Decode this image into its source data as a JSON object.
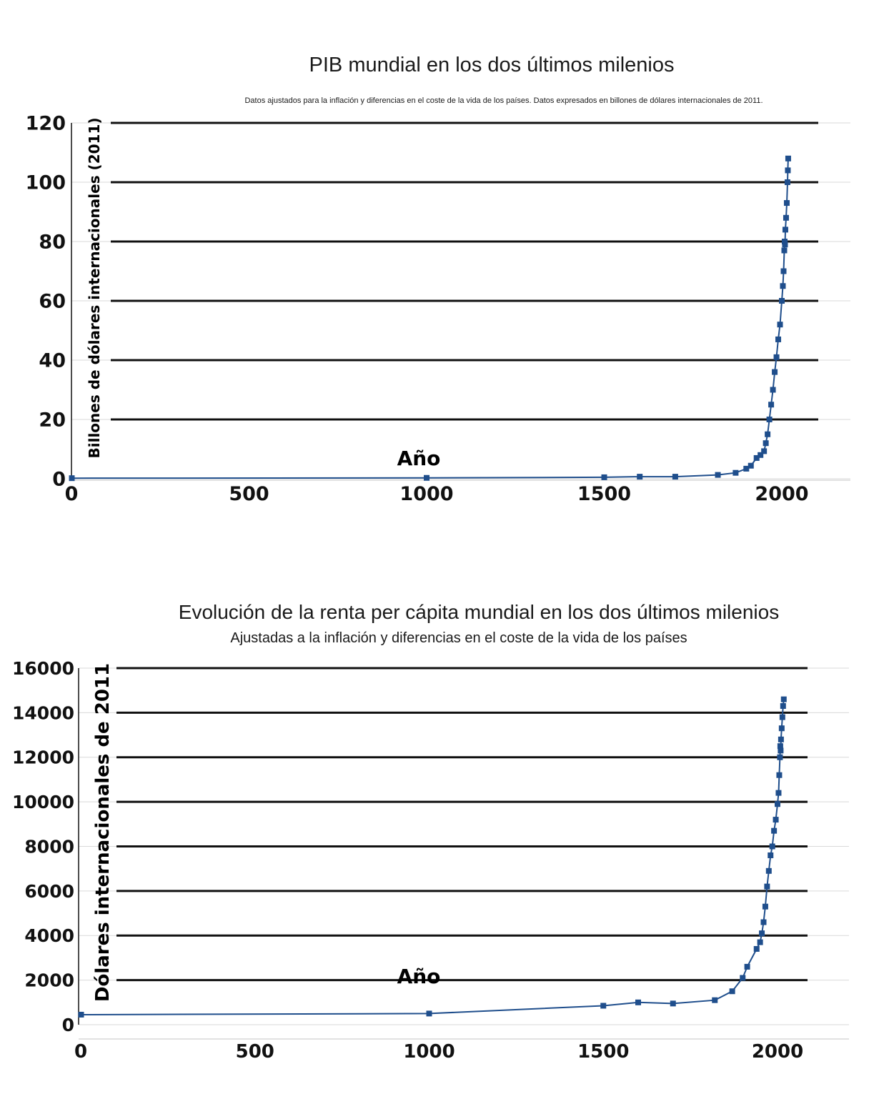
{
  "colors": {
    "series": "#1f4e8c",
    "grid_major": "#111111",
    "grid_light": "#d9d9d9",
    "text": "#111111"
  },
  "chart_data": [
    {
      "type": "line",
      "title": "PIB mundial en los dos últimos milenios",
      "subtitle": "Datos ajustados para la inflación y diferencias en el coste de la vida de los países. Datos expresados en billones de dólares internacionales de 2011.",
      "xlabel": "Año",
      "ylabel": "Billones de dólares internacionales (2011)",
      "xlim": [
        0,
        2100
      ],
      "ylim": [
        0,
        120
      ],
      "x_ticks": [
        0,
        500,
        1000,
        1500,
        2000
      ],
      "y_ticks": [
        0,
        20,
        40,
        60,
        80,
        100,
        120
      ],
      "grid": true,
      "markers": "square",
      "series": [
        {
          "name": "",
          "points": [
            [
              1,
              0.2
            ],
            [
              1000,
              0.3
            ],
            [
              1500,
              0.5
            ],
            [
              1600,
              0.7
            ],
            [
              1700,
              0.7
            ],
            [
              1820,
              1.3
            ],
            [
              1870,
              2.0
            ],
            [
              1900,
              3.4
            ],
            [
              1913,
              4.4
            ],
            [
              1929,
              7.0
            ],
            [
              1940,
              8.0
            ],
            [
              1950,
              9.3
            ],
            [
              1955,
              12.0
            ],
            [
              1960,
              15.0
            ],
            [
              1965,
              20.0
            ],
            [
              1970,
              25.0
            ],
            [
              1975,
              30.0
            ],
            [
              1980,
              36.0
            ],
            [
              1985,
              41.0
            ],
            [
              1990,
              47.0
            ],
            [
              1995,
              52.0
            ],
            [
              2000,
              60.0
            ],
            [
              2003,
              65.0
            ],
            [
              2005,
              70.0
            ],
            [
              2007,
              77.0
            ],
            [
              2008,
              80.0
            ],
            [
              2009,
              79.0
            ],
            [
              2010,
              84.0
            ],
            [
              2012,
              88.0
            ],
            [
              2014,
              93.0
            ],
            [
              2016,
              100.0
            ],
            [
              2017,
              104.0
            ],
            [
              2018,
              108.0
            ]
          ]
        }
      ]
    },
    {
      "type": "line",
      "title": "Evolución de la renta per cápita mundial en los dos últimos milenios",
      "subtitle": "Ajustadas a la inflación y diferencias en el coste de la vida de los países",
      "xlabel": "Año",
      "ylabel": "Dólares internacionales de 2011",
      "xlim": [
        0,
        2200
      ],
      "ylim": [
        0,
        16000
      ],
      "x_ticks": [
        0,
        500,
        1000,
        1500,
        2000
      ],
      "y_ticks": [
        0,
        2000,
        4000,
        6000,
        8000,
        10000,
        12000,
        14000,
        16000
      ],
      "grid": true,
      "markers": "square",
      "series": [
        {
          "name": "",
          "points": [
            [
              1,
              450
            ],
            [
              1000,
              500
            ],
            [
              1500,
              850
            ],
            [
              1600,
              1000
            ],
            [
              1700,
              950
            ],
            [
              1820,
              1100
            ],
            [
              1870,
              1500
            ],
            [
              1900,
              2100
            ],
            [
              1913,
              2600
            ],
            [
              1940,
              3400
            ],
            [
              1950,
              3700
            ],
            [
              1955,
              4100
            ],
            [
              1960,
              4600
            ],
            [
              1965,
              5300
            ],
            [
              1970,
              6200
            ],
            [
              1975,
              6900
            ],
            [
              1980,
              7600
            ],
            [
              1985,
              8000
            ],
            [
              1990,
              8700
            ],
            [
              1995,
              9200
            ],
            [
              2000,
              9900
            ],
            [
              2003,
              10400
            ],
            [
              2005,
              11200
            ],
            [
              2007,
              12000
            ],
            [
              2008,
              12500
            ],
            [
              2009,
              12300
            ],
            [
              2010,
              12800
            ],
            [
              2012,
              13300
            ],
            [
              2014,
              13800
            ],
            [
              2016,
              14300
            ],
            [
              2018,
              14600
            ]
          ]
        }
      ]
    }
  ]
}
